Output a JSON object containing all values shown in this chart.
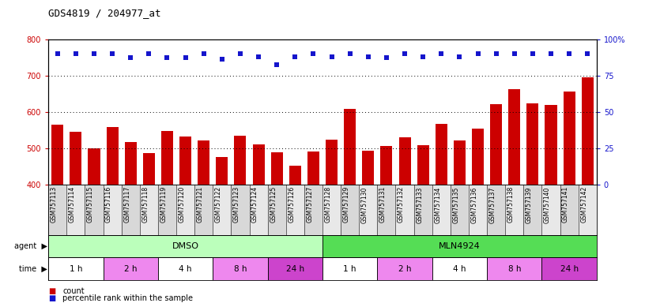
{
  "title": "GDS4819 / 204977_at",
  "samples": [
    "GSM757113",
    "GSM757114",
    "GSM757115",
    "GSM757116",
    "GSM757117",
    "GSM757118",
    "GSM757119",
    "GSM757120",
    "GSM757121",
    "GSM757122",
    "GSM757123",
    "GSM757124",
    "GSM757125",
    "GSM757126",
    "GSM757127",
    "GSM757128",
    "GSM757129",
    "GSM757130",
    "GSM757131",
    "GSM757132",
    "GSM757133",
    "GSM757134",
    "GSM757135",
    "GSM757136",
    "GSM757137",
    "GSM757138",
    "GSM757139",
    "GSM757140",
    "GSM757141",
    "GSM757142"
  ],
  "counts": [
    565,
    545,
    500,
    560,
    518,
    487,
    548,
    532,
    521,
    476,
    534,
    511,
    490,
    453,
    492,
    525,
    608,
    493,
    506,
    530,
    510,
    567,
    522,
    554,
    621,
    664,
    625,
    619,
    657,
    695
  ],
  "percentile_vals": [
    760,
    760,
    760,
    760,
    750,
    760,
    750,
    750,
    760,
    745,
    760,
    752,
    730,
    752,
    760,
    752,
    760,
    752,
    750,
    760,
    752,
    760,
    752,
    760,
    760,
    760,
    760,
    760,
    760,
    760
  ],
  "bar_color": "#cc0000",
  "dot_color": "#1515cc",
  "ylim_left": [
    400,
    800
  ],
  "ylim_right": [
    0,
    100
  ],
  "yticks_left": [
    400,
    500,
    600,
    700,
    800
  ],
  "ytick_labels_right": [
    "0",
    "25",
    "50",
    "75",
    "100%"
  ],
  "yticks_right": [
    0,
    25,
    50,
    75,
    100
  ],
  "agent_groups": [
    {
      "label": "DMSO",
      "start": 0,
      "end": 15,
      "color": "#bbffbb"
    },
    {
      "label": "MLN4924",
      "start": 15,
      "end": 30,
      "color": "#55dd55"
    }
  ],
  "time_groups": [
    {
      "label": "1 h",
      "start": 0,
      "end": 3,
      "color": "#ffffff"
    },
    {
      "label": "2 h",
      "start": 3,
      "end": 6,
      "color": "#ee88ee"
    },
    {
      "label": "4 h",
      "start": 6,
      "end": 9,
      "color": "#ffffff"
    },
    {
      "label": "8 h",
      "start": 9,
      "end": 12,
      "color": "#ee88ee"
    },
    {
      "label": "24 h",
      "start": 12,
      "end": 15,
      "color": "#cc44cc"
    },
    {
      "label": "1 h",
      "start": 15,
      "end": 18,
      "color": "#ffffff"
    },
    {
      "label": "2 h",
      "start": 18,
      "end": 21,
      "color": "#ee88ee"
    },
    {
      "label": "4 h",
      "start": 21,
      "end": 24,
      "color": "#ffffff"
    },
    {
      "label": "8 h",
      "start": 24,
      "end": 27,
      "color": "#ee88ee"
    },
    {
      "label": "24 h",
      "start": 27,
      "end": 30,
      "color": "#cc44cc"
    }
  ],
  "legend_count_label": "count",
  "legend_pct_label": "percentile rank within the sample",
  "fig_width": 8.16,
  "fig_height": 3.84,
  "dpi": 100
}
